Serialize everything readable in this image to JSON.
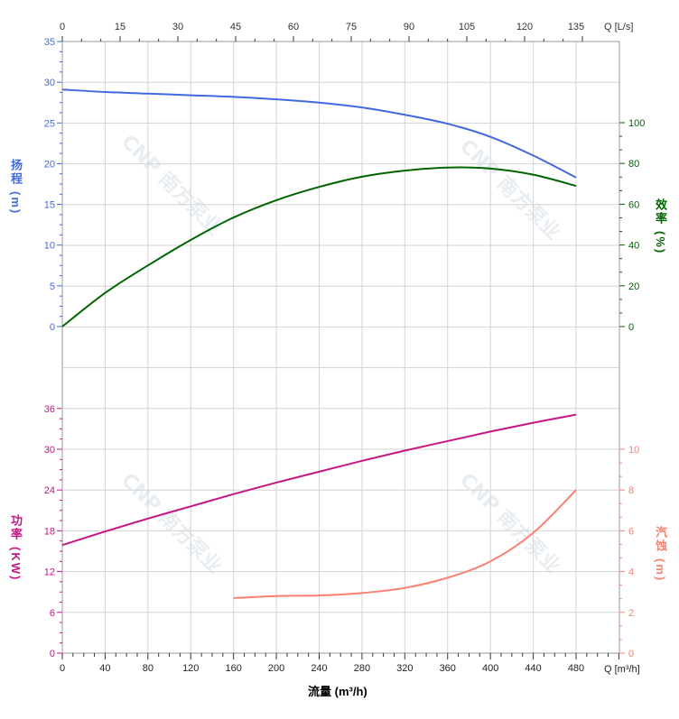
{
  "watermark": "CNP 南方泵业",
  "colors": {
    "head": "#4169E1",
    "efficiency": "#006400",
    "power": "#C71585",
    "npsh": "#FA8072",
    "grid": "#d3d3d3"
  },
  "chart_data": {
    "type": "line",
    "xlabel": "流量 (m³/h)",
    "x_axis_bottom": {
      "unit_label": "Q [m³/h]",
      "range": [
        0,
        480
      ],
      "ticks": [
        0,
        40,
        80,
        120,
        160,
        200,
        240,
        280,
        320,
        360,
        400,
        440,
        480
      ]
    },
    "x_axis_top": {
      "unit_label": "Q [L/s]",
      "range": [
        0,
        135
      ],
      "ticks": [
        0,
        15,
        30,
        45,
        60,
        75,
        90,
        105,
        120,
        135
      ]
    },
    "grid": true,
    "axes": {
      "head": {
        "label": "扬程",
        "unit": "(m)",
        "range": [
          0,
          35
        ],
        "ticks": [
          0,
          5,
          10,
          15,
          20,
          25,
          30,
          35
        ]
      },
      "efficiency": {
        "label": "效率",
        "unit": "(%)",
        "range": [
          0,
          100
        ],
        "ticks": [
          0,
          20,
          40,
          60,
          80,
          100
        ]
      },
      "power": {
        "label": "功率",
        "unit": "(KW)",
        "range": [
          0,
          36
        ],
        "ticks": [
          0,
          6,
          12,
          18,
          24,
          30,
          36
        ]
      },
      "npsh": {
        "label": "汽蚀",
        "unit": "(m)",
        "range": [
          0,
          10
        ],
        "ticks": [
          0,
          2,
          4,
          6,
          8,
          10
        ]
      }
    },
    "series": [
      {
        "axis": "head",
        "x": [
          0,
          40,
          80,
          120,
          160,
          200,
          240,
          280,
          320,
          360,
          400,
          440,
          480
        ],
        "y": [
          29.1,
          28.8,
          28.6,
          28.4,
          28.2,
          27.9,
          27.5,
          26.9,
          26.0,
          24.9,
          23.3,
          21.0,
          18.3
        ]
      },
      {
        "axis": "efficiency",
        "x": [
          0,
          40,
          80,
          120,
          160,
          200,
          240,
          280,
          320,
          360,
          400,
          440,
          480
        ],
        "y": [
          0,
          16.5,
          30,
          42.5,
          53.5,
          62,
          68.5,
          73.5,
          76.5,
          78,
          77.5,
          74.5,
          69
        ]
      },
      {
        "axis": "power",
        "x": [
          0,
          40,
          80,
          120,
          160,
          200,
          240,
          280,
          320,
          360,
          400,
          440,
          480
        ],
        "y": [
          15.9,
          17.9,
          19.8,
          21.6,
          23.4,
          25.1,
          26.7,
          28.3,
          29.8,
          31.2,
          32.6,
          33.9,
          35.1
        ]
      },
      {
        "axis": "npsh",
        "x": [
          160,
          200,
          240,
          280,
          320,
          360,
          400,
          440,
          480
        ],
        "y": [
          2.7,
          2.8,
          2.83,
          2.95,
          3.2,
          3.7,
          4.5,
          5.9,
          8.0
        ]
      }
    ]
  }
}
